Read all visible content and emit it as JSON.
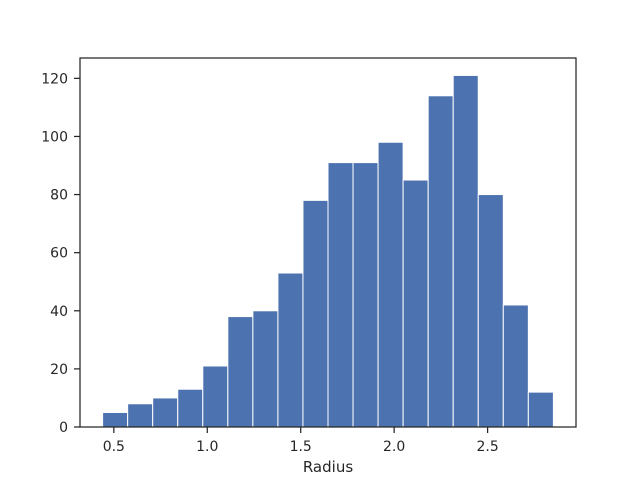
{
  "chart_data": {
    "type": "bar",
    "title": "",
    "xlabel": "Radius",
    "ylabel": "",
    "bin_edges": [
      0.44,
      0.574,
      0.708,
      0.842,
      0.976,
      1.11,
      1.244,
      1.378,
      1.512,
      1.646,
      1.78,
      1.914,
      2.048,
      2.182,
      2.316,
      2.45,
      2.584,
      2.718,
      2.852
    ],
    "values": [
      5,
      8,
      10,
      13,
      21,
      38,
      40,
      53,
      78,
      91,
      91,
      98,
      85,
      114,
      121,
      80,
      42,
      12
    ],
    "xlim": [
      0.319,
      2.973
    ],
    "ylim": [
      0,
      127
    ],
    "xticks": [
      0.5,
      1.0,
      1.5,
      2.0,
      2.5
    ],
    "xtick_labels": [
      "0.5",
      "1.0",
      "1.5",
      "2.0",
      "2.5"
    ],
    "yticks": [
      0,
      20,
      40,
      60,
      80,
      100,
      120
    ],
    "ytick_labels": [
      "0",
      "20",
      "40",
      "60",
      "80",
      "100",
      "120"
    ],
    "grid": false,
    "bar_color": "#4c72b0",
    "edge_color": "#ffffff"
  }
}
